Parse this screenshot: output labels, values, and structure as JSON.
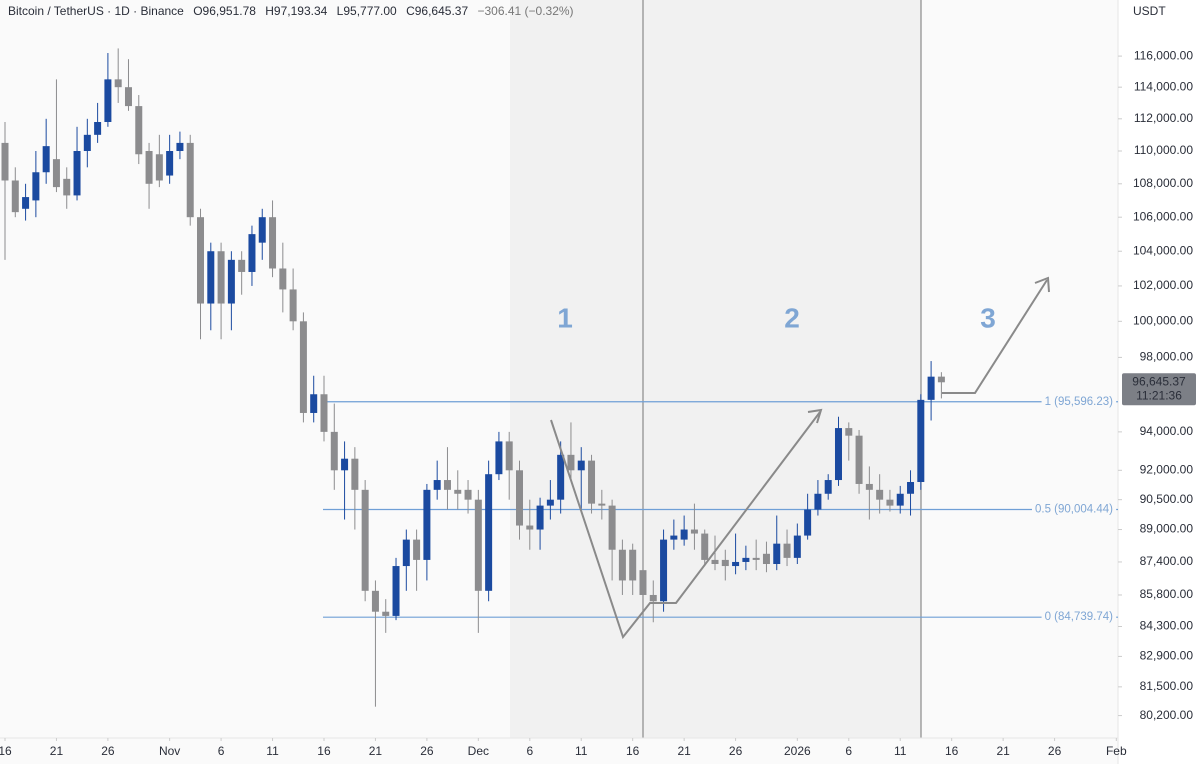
{
  "chart_data": {
    "type": "candlestick",
    "header": {
      "title": "Bitcoin / TetherUS · 1D · Binance",
      "open": "O96,951.78",
      "high": "H97,193.34",
      "low": "L95,777.00",
      "close": "C96,645.37",
      "change": "−306.41 (−0.32%)"
    },
    "currency": "USDT",
    "price_badge": {
      "price": "96,645.37",
      "countdown": "11:21:36"
    },
    "wave_labels": [
      "1",
      "2",
      "3"
    ],
    "up_color": "#1b4aa0",
    "down_color": "#8c8c8e",
    "fib_color": "#6f9fd6",
    "log_scale": true,
    "categories": [
      "16",
      null,
      null,
      null,
      null,
      "21",
      null,
      null,
      null,
      null,
      "26",
      null,
      null,
      null,
      null,
      null,
      "Nov",
      null,
      null,
      null,
      null,
      "6",
      null,
      null,
      null,
      null,
      "11",
      null,
      null,
      null,
      null,
      "16",
      null,
      null,
      null,
      null,
      "21",
      null,
      null,
      null,
      null,
      "26",
      null,
      null,
      null,
      null,
      "Dec",
      null,
      null,
      null,
      null,
      "6",
      null,
      null,
      null,
      null,
      "11",
      null,
      null,
      null,
      null,
      "16",
      null,
      null,
      null,
      null,
      "21",
      null,
      null,
      null,
      null,
      "26",
      null,
      null,
      null,
      null,
      null,
      "2026",
      null,
      null,
      null,
      null,
      "6",
      null,
      null,
      null,
      null,
      "11",
      null,
      null,
      null,
      null,
      "16",
      null,
      null,
      null,
      null,
      "21",
      null,
      null,
      null,
      null,
      "26",
      null,
      null,
      null,
      null,
      null,
      "Feb"
    ],
    "open": [
      110500,
      108200,
      106500,
      107000,
      108700,
      109500,
      108300,
      107300,
      110000,
      111000,
      111800,
      114500,
      114000,
      112800,
      110000,
      109800,
      108500,
      110000,
      110500,
      106000,
      101000,
      104000,
      101000,
      103500,
      102800,
      104500,
      106000,
      103000,
      101800,
      100000,
      95000,
      96000,
      94000,
      92000,
      92600,
      91000,
      86000,
      85000,
      84800,
      87200,
      88500,
      87500,
      91000,
      91500,
      91000,
      91000,
      90500,
      86000,
      91800,
      93500,
      92000,
      89200,
      89000,
      90200,
      90500,
      92800,
      92000,
      92500,
      90300,
      90200,
      88000,
      88000,
      87000,
      85800,
      85500,
      88500,
      88500,
      89000,
      88800,
      87500,
      87500,
      87200,
      87400,
      87600,
      87800,
      87300,
      88300,
      87600,
      88700,
      90000,
      90800,
      91500,
      94200,
      93800,
      91300,
      91000,
      90500,
      90200,
      90800,
      91400,
      95700,
      96951.78,
      null,
      null,
      null,
      null,
      null,
      null,
      null,
      null,
      null,
      null,
      null,
      null,
      null,
      null,
      null,
      null,
      null
    ],
    "high": [
      111800,
      109000,
      108000,
      110000,
      112000,
      114500,
      109000,
      111500,
      112000,
      113000,
      116200,
      116500,
      115800,
      113500,
      110500,
      111000,
      111000,
      111200,
      111000,
      106500,
      104500,
      104500,
      104000,
      104000,
      105500,
      106500,
      107000,
      104500,
      103000,
      100500,
      97000,
      97000,
      95500,
      93500,
      93200,
      91500,
      86500,
      85600,
      87600,
      89000,
      89000,
      91300,
      92500,
      93200,
      92000,
      91500,
      91000,
      92500,
      94000,
      94000,
      92500,
      90500,
      90600,
      91500,
      93500,
      94500,
      93200,
      92800,
      91000,
      90500,
      88500,
      88300,
      88500,
      86500,
      89000,
      89500,
      89700,
      90300,
      89000,
      88700,
      88000,
      88800,
      88200,
      88500,
      88400,
      89700,
      89000,
      89300,
      90800,
      91500,
      91800,
      94800,
      94500,
      94100,
      92200,
      91800,
      91000,
      91200,
      92000,
      96000,
      97800,
      97193.34,
      null,
      null,
      null,
      null,
      null,
      null,
      null,
      null,
      null,
      null,
      null,
      null,
      null,
      null,
      null,
      null,
      null
    ],
    "low": [
      103500,
      106000,
      105800,
      106000,
      108000,
      107500,
      106500,
      107000,
      109000,
      110500,
      111500,
      113000,
      112500,
      109200,
      106500,
      107800,
      108000,
      109500,
      105500,
      99000,
      99500,
      99000,
      99500,
      101500,
      102000,
      103500,
      102500,
      100500,
      99500,
      94500,
      94500,
      93500,
      91000,
      89500,
      89000,
      85500,
      80600,
      84000,
      84600,
      86000,
      86000,
      86500,
      90500,
      90000,
      90000,
      89800,
      84000,
      85500,
      91500,
      90500,
      88500,
      88000,
      88000,
      89500,
      89800,
      91500,
      90000,
      89800,
      89500,
      86500,
      85800,
      85800,
      85000,
      84500,
      85000,
      88000,
      88200,
      88000,
      87200,
      87000,
      86500,
      86800,
      87000,
      87000,
      86900,
      87000,
      87200,
      87300,
      88500,
      89700,
      90500,
      91200,
      92500,
      90800,
      89500,
      89800,
      89900,
      89800,
      89700,
      91000,
      94600,
      95777,
      null,
      null,
      null,
      null,
      null,
      null,
      null,
      null,
      null,
      null,
      null,
      null,
      null,
      null,
      null,
      null,
      null
    ],
    "close": [
      108200,
      106300,
      107200,
      108700,
      110300,
      107800,
      107300,
      110000,
      111000,
      111800,
      114500,
      114000,
      112800,
      109800,
      108000,
      108200,
      110000,
      110500,
      106000,
      101000,
      104000,
      101000,
      103500,
      102800,
      105000,
      106000,
      103000,
      101800,
      100000,
      95000,
      96000,
      94000,
      92000,
      92600,
      91000,
      86000,
      85000,
      84800,
      87200,
      88500,
      87500,
      91000,
      91500,
      91000,
      90800,
      90500,
      86000,
      91800,
      93500,
      92000,
      89200,
      89000,
      90200,
      90500,
      92800,
      92000,
      92500,
      90300,
      90200,
      88000,
      86500,
      86500,
      85800,
      85500,
      88500,
      88700,
      89000,
      88800,
      87500,
      87300,
      87200,
      87400,
      87600,
      87500,
      87300,
      88300,
      87600,
      88700,
      90000,
      90800,
      91500,
      94200,
      93800,
      91300,
      91000,
      90500,
      90200,
      90800,
      91400,
      95700,
      96950,
      96645.37,
      null,
      null,
      null,
      null,
      null,
      null,
      null,
      null,
      null,
      null,
      null,
      null,
      null,
      null,
      null,
      null,
      null
    ],
    "ylim": [
      79200,
      119700
    ],
    "yticks": [
      {
        "value": 116000,
        "label": "116,000.00"
      },
      {
        "value": 114000,
        "label": "114,000.00"
      },
      {
        "value": 112000,
        "label": "112,000.00"
      },
      {
        "value": 110000,
        "label": "110,000.00"
      },
      {
        "value": 108000,
        "label": "108,000.00"
      },
      {
        "value": 106000,
        "label": "106,000.00"
      },
      {
        "value": 104000,
        "label": "104,000.00"
      },
      {
        "value": 102000,
        "label": "102,000.00"
      },
      {
        "value": 100000,
        "label": "100,000.00"
      },
      {
        "value": 98000,
        "label": "98,000.00"
      },
      {
        "value": 94000,
        "label": "94,000.00"
      },
      {
        "value": 92000,
        "label": "92,000.00"
      },
      {
        "value": 90500,
        "label": "90,500.00"
      },
      {
        "value": 89000,
        "label": "89,000.00"
      },
      {
        "value": 87400,
        "label": "87,400.00"
      },
      {
        "value": 85800,
        "label": "85,800.00"
      },
      {
        "value": 84300,
        "label": "84,300.00"
      },
      {
        "value": 82900,
        "label": "82,900.00"
      },
      {
        "value": 81500,
        "label": "81,500.00"
      },
      {
        "value": 80200,
        "label": "80,200.00"
      }
    ],
    "fib_levels": [
      {
        "value": 95596.23,
        "label": "1 (95,596.23)"
      },
      {
        "value": 90004.44,
        "label": "0.5 (90,004.44)"
      },
      {
        "value": 84739.74,
        "label": "0 (84,739.74)"
      }
    ]
  }
}
